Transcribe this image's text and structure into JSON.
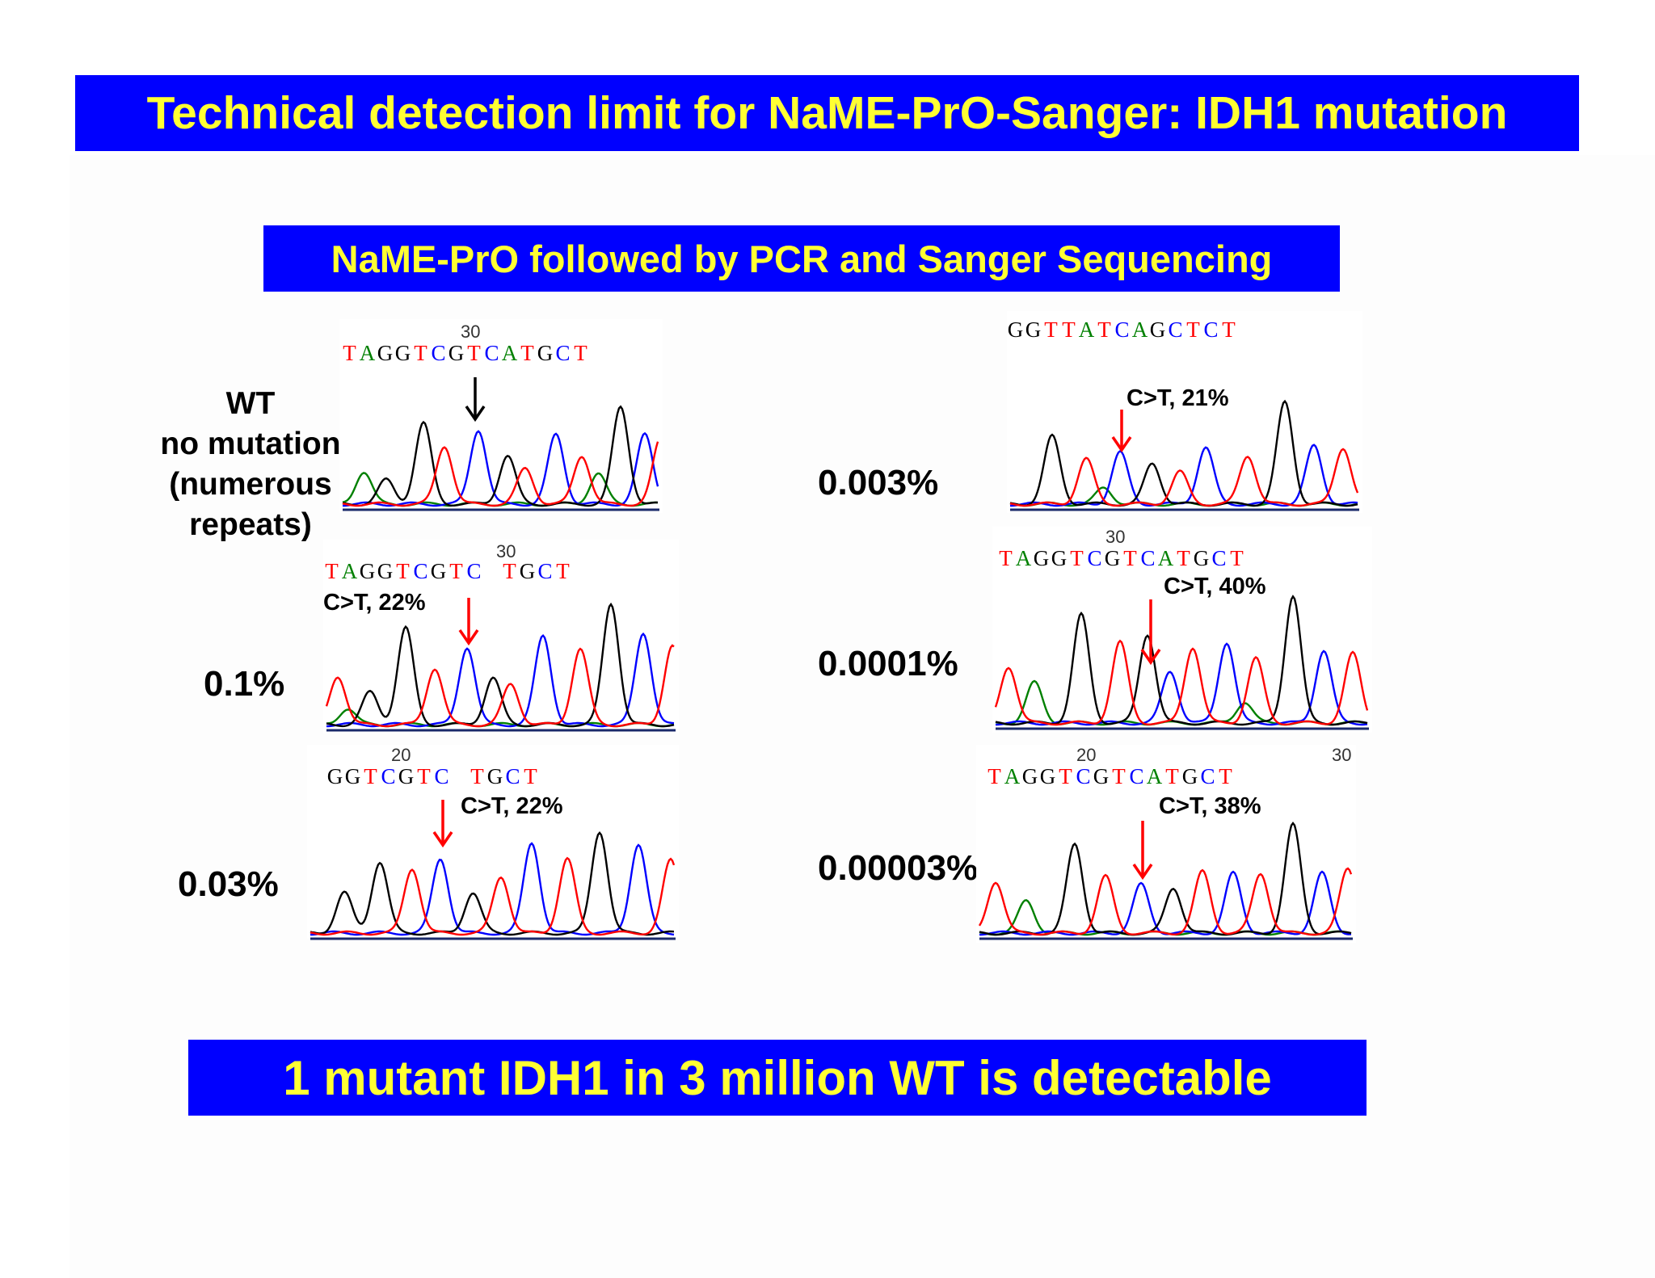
{
  "title": "Technical detection limit for NaME-PrO-Sanger: IDH1 mutation",
  "subtitle": "NaME-PrO followed by PCR and Sanger Sequencing",
  "conclusion": "1 mutant IDH1 in 3 million WT is detectable",
  "wt_label": [
    "WT",
    "no mutation",
    "(numerous",
    "repeats)"
  ],
  "colors": {
    "banner": "#0000ff",
    "banner_text": "#ffff33",
    "A": "#008000",
    "C": "#0000ff",
    "G": "#000000",
    "T": "#ff0000",
    "arrow_mut": "#ff0000",
    "arrow_wt": "#000000"
  },
  "panels": [
    {
      "id": "wt",
      "concentration": "",
      "sequence": "TAGGTCGTCATGCT",
      "position_label": "30",
      "mutation_label": ""
    },
    {
      "id": "p01",
      "concentration": "0.1%",
      "sequence": "TAGGTCGTC TGCT",
      "position_label": "30",
      "mutation_label": "C>T, 22%"
    },
    {
      "id": "p003",
      "concentration": "0.03%",
      "sequence": "GGTCGTC TGCT",
      "position_label": "20",
      "mutation_label": "C>T, 22%"
    },
    {
      "id": "p0003",
      "concentration": "0.003%",
      "sequence": "GGTTATCAGCTCT",
      "position_label": "",
      "mutation_label": "C>T, 21%"
    },
    {
      "id": "p00001",
      "concentration": "0.0001%",
      "sequence": "TAGGTCGTCATGCT",
      "position_label": "30",
      "mutation_label": "C>T, 40%"
    },
    {
      "id": "p0000003",
      "concentration": "0.00003%",
      "sequence": "TAGGTCGTCATGCT",
      "position_label": "20",
      "position_label_2": "30",
      "mutation_label": "C>T, 38%"
    }
  ]
}
